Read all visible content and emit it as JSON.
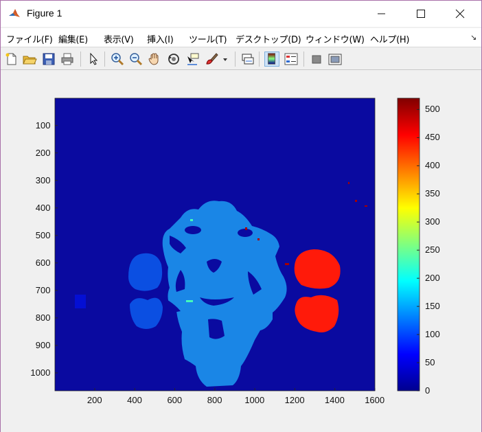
{
  "window": {
    "title": "Figure 1",
    "controls": {
      "minimize": "minimize-icon",
      "maximize": "maximize-icon",
      "close": "close-icon"
    }
  },
  "menu": {
    "items": [
      {
        "label": "ファイル(F)"
      },
      {
        "label": "編集(E)"
      },
      {
        "label": "表示(V)"
      },
      {
        "label": "挿入(I)"
      },
      {
        "label": "ツール(T)"
      },
      {
        "label": "デスクトップ(D)"
      },
      {
        "label": "ウィンドウ(W)"
      },
      {
        "label": "ヘルプ(H)"
      }
    ],
    "overflow_arrow": "↘"
  },
  "toolbar": {
    "icons": [
      "new-figure-icon",
      "open-file-icon",
      "save-icon",
      "print-icon",
      "select-pointer-icon",
      "zoom-in-icon",
      "zoom-out-icon",
      "pan-hand-icon",
      "rotate-3d-icon",
      "data-cursor-icon",
      "brush-icon",
      "brush-dropdown-icon",
      "link-plot-icon",
      "insert-colorbar-icon",
      "insert-legend-icon",
      "hide-plot-tools-icon",
      "show-plot-tools-icon"
    ]
  },
  "colors": {
    "background": "#0a0aa0",
    "face_blue": "#1a86e6",
    "ear_blue": "#0b4fe2",
    "ear_red": "#ff1a0a"
  },
  "chart_data": {
    "type": "heatmap",
    "title": "",
    "xlabel": "",
    "ylabel": "",
    "colormap": "jet",
    "xlim": [
      1,
      1600
    ],
    "ylim": [
      1,
      1065
    ],
    "x_ticks": [
      "200",
      "400",
      "600",
      "800",
      "1000",
      "1200",
      "1400",
      "1600"
    ],
    "y_ticks": [
      "100",
      "200",
      "300",
      "400",
      "500",
      "600",
      "700",
      "800",
      "900",
      "1000"
    ],
    "colorbar": {
      "range": [
        0,
        520
      ],
      "ticks": [
        "0",
        "50",
        "100",
        "150",
        "200",
        "250",
        "300",
        "350",
        "400",
        "450",
        "500"
      ]
    },
    "regions": [
      {
        "name": "background",
        "value": 0
      },
      {
        "name": "face-and-neck",
        "value": 130
      },
      {
        "name": "left-ear-lobes",
        "value": 75
      },
      {
        "name": "right-ear-lobes",
        "value": 470
      },
      {
        "name": "small-noise-specks",
        "value": 230
      },
      {
        "name": "bright-specks",
        "value": 500
      }
    ]
  }
}
